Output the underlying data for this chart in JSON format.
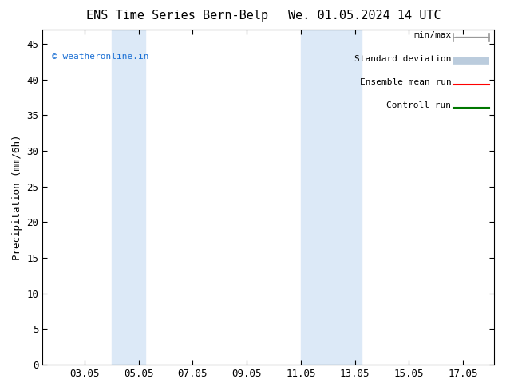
{
  "title_left": "ENS Time Series Bern-Belp",
  "title_right": "We. 01.05.2024 14 UTC",
  "ylabel": "Precipitation (mm/6h)",
  "ylim": [
    0,
    47
  ],
  "yticks": [
    0,
    5,
    10,
    15,
    20,
    25,
    30,
    35,
    40,
    45
  ],
  "xlim": [
    1.5,
    18.2
  ],
  "xticks": [
    3.05,
    5.05,
    7.05,
    9.05,
    11.05,
    13.05,
    15.05,
    17.05
  ],
  "xtick_labels": [
    "03.05",
    "05.05",
    "07.05",
    "09.05",
    "11.05",
    "13.05",
    "15.05",
    "17.05"
  ],
  "shaded_bands": [
    {
      "xmin": 4.05,
      "xmax": 5.3
    },
    {
      "xmin": 11.05,
      "xmax": 12.05
    },
    {
      "xmin": 12.05,
      "xmax": 13.3
    }
  ],
  "band_color": "#dce9f7",
  "watermark_text": "© weatheronline.in",
  "watermark_color": "#1a6fd4",
  "legend_labels": [
    "min/max",
    "Standard deviation",
    "Ensemble mean run",
    "Controll run"
  ],
  "legend_colors": [
    "#999999",
    "#bbccdd",
    "#ff0000",
    "#007700"
  ],
  "background_color": "#ffffff",
  "spine_color": "#000000",
  "tick_color": "#000000",
  "title_fontsize": 11,
  "label_fontsize": 9,
  "tick_fontsize": 9,
  "legend_fontsize": 8
}
